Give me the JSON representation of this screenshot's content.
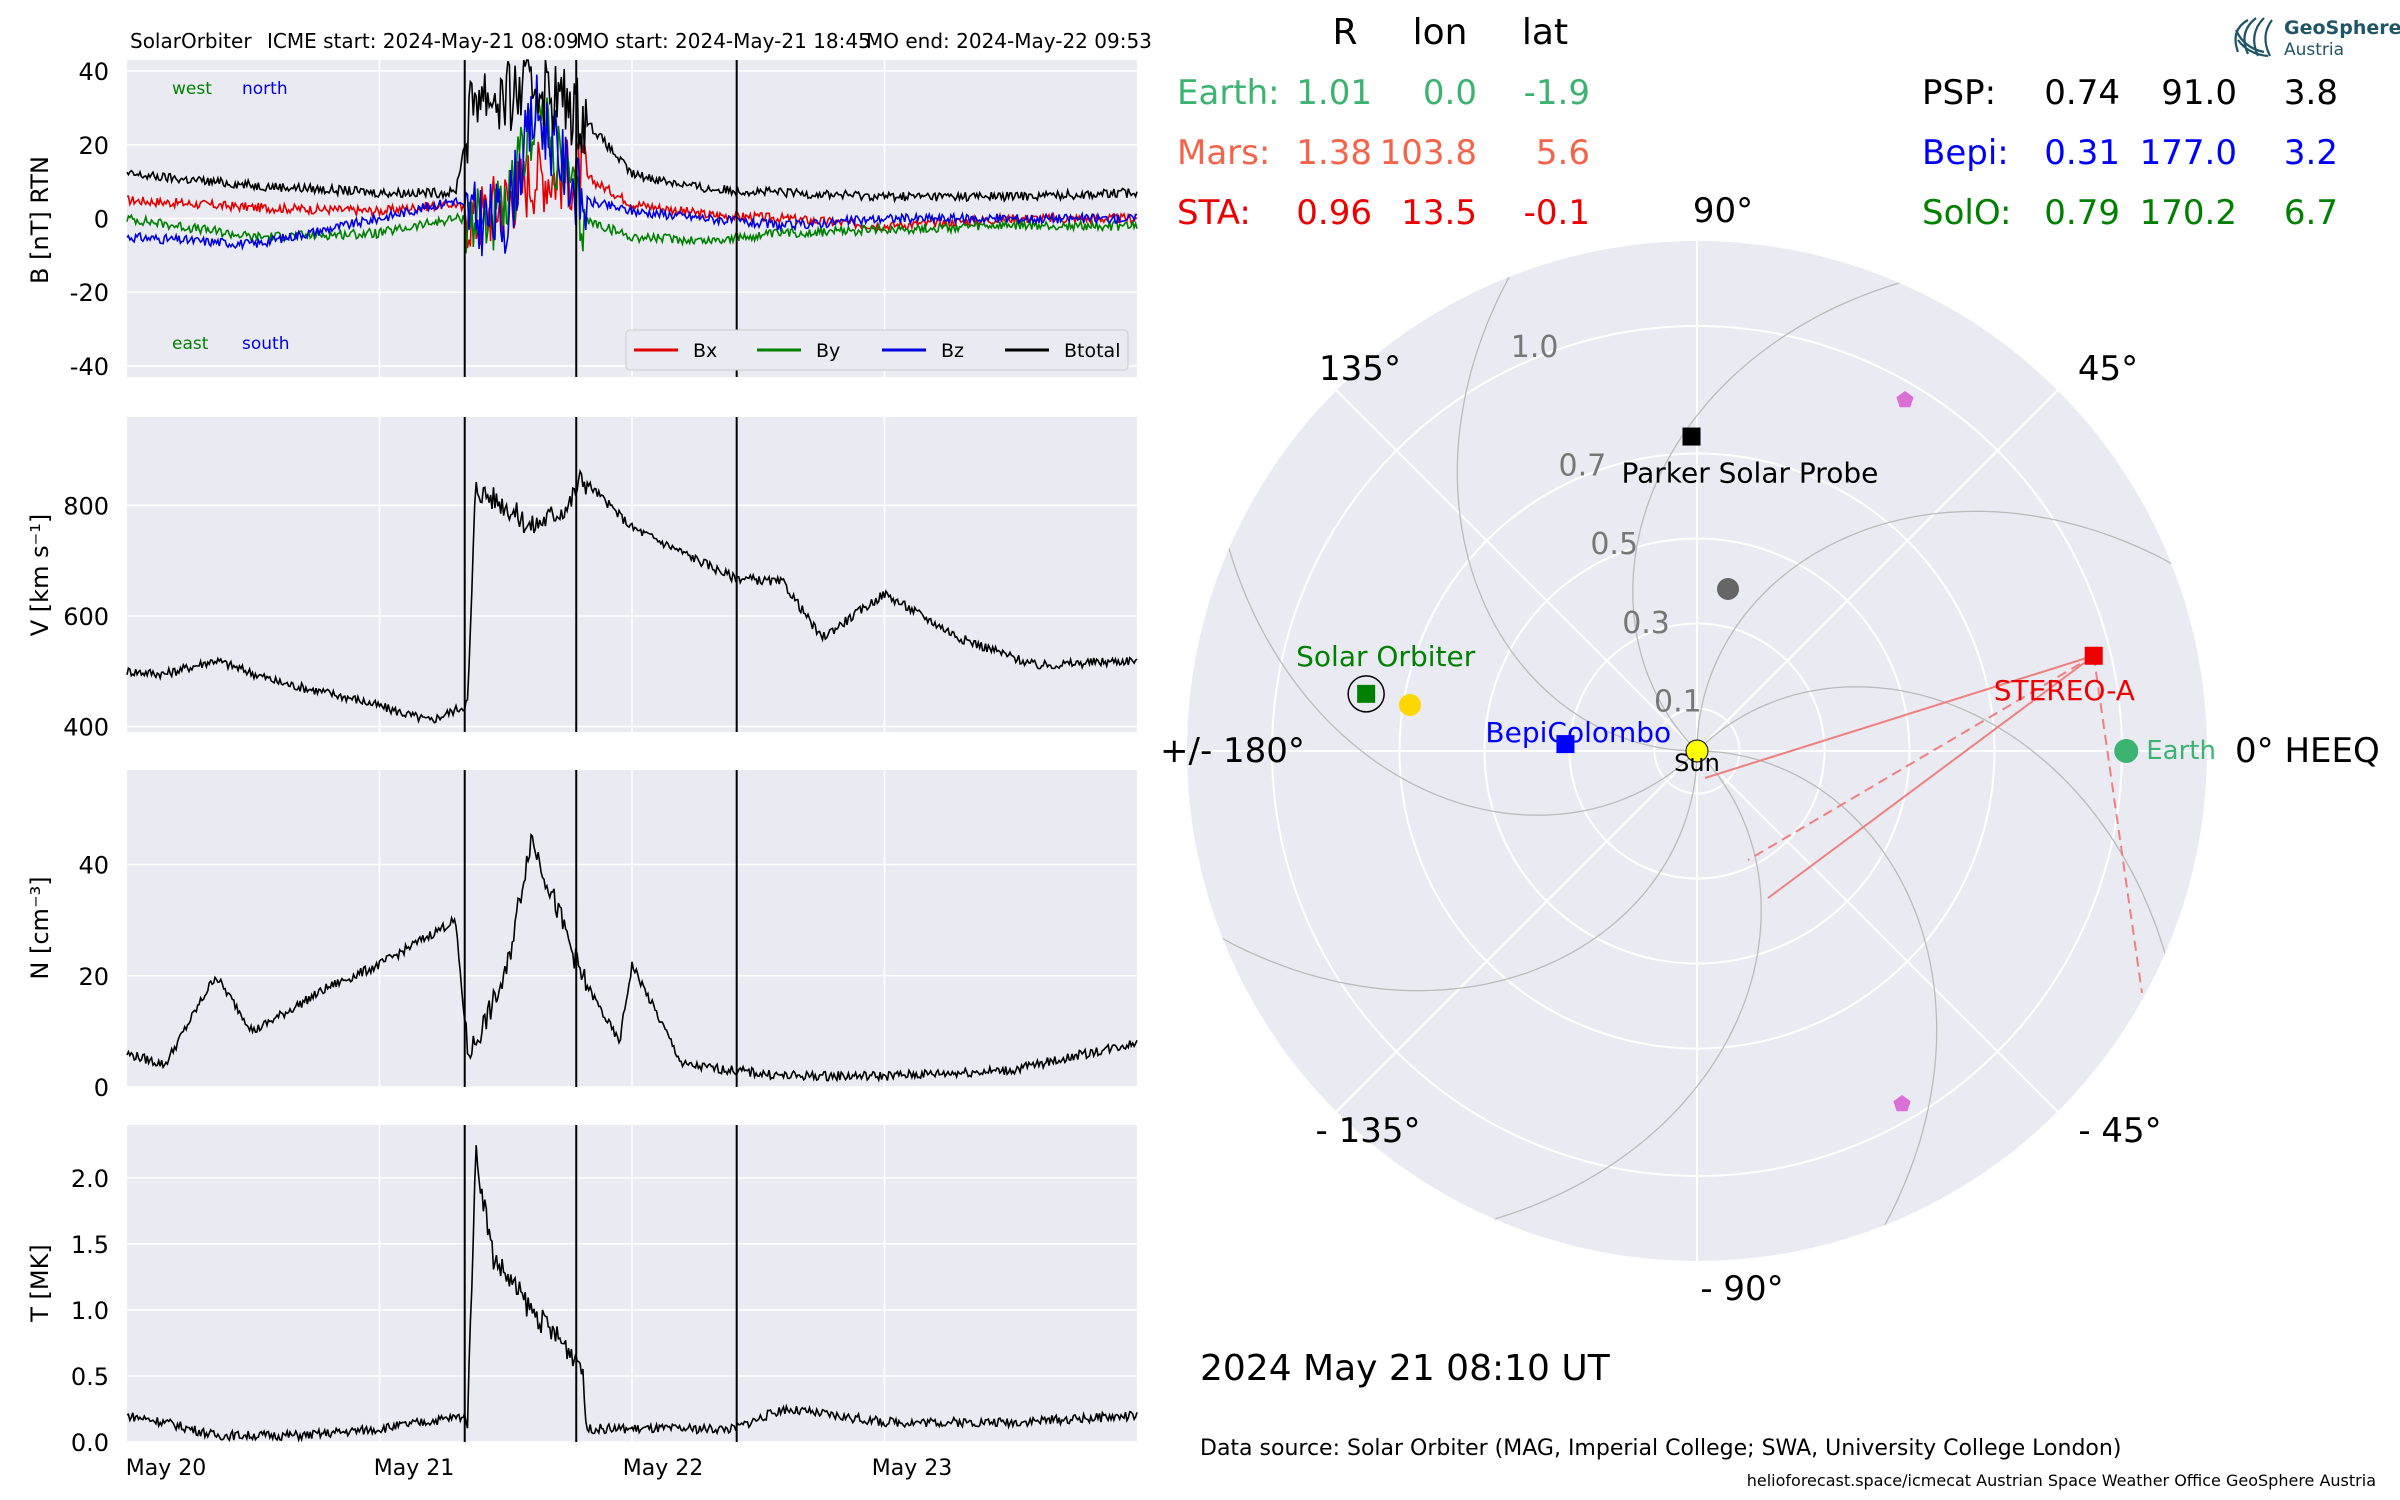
{
  "header": {
    "spacecraft": "SolarOrbiter",
    "icme_start": "ICME start: 2024-May-21 08:09",
    "mo_start": "MO start: 2024-May-21 18:45",
    "mo_end": "MO end: 2024-May-22 09:53"
  },
  "colors": {
    "panel_bg": "#EAEAF2",
    "grid": "#ffffff",
    "bx": "#e00000",
    "by": "#008000",
    "bz": "#0000e0",
    "btotal": "#000000",
    "earth": "#3cb371",
    "mars": "#f4644a",
    "sta": "#ee0000",
    "psp": "#000000",
    "bepi": "#0000ff",
    "solo": "#008000",
    "sun": "#ffff00",
    "pentagon": "#da70d6",
    "grey_dot": "#666666",
    "sta_lines": "#f08080"
  },
  "chart_data": [
    {
      "type": "line",
      "panel": "magnetic_field",
      "ylabel": "B [nT] RTN",
      "ylim": [
        -43,
        43
      ],
      "yticks": [
        -40,
        -20,
        0,
        20,
        40
      ],
      "grid": true,
      "legend_position": "lower-right",
      "corner_labels": {
        "west": "west",
        "north": "north",
        "east": "east",
        "south": "south"
      },
      "series": [
        {
          "name": "Bx",
          "color": "#e00000",
          "x": [
            0,
            0.5,
            1.0,
            1.3,
            1.38,
            1.5,
            1.62,
            1.8,
            2.0,
            2.3,
            2.6,
            3.0,
            3.5,
            4.0
          ],
          "y": [
            5,
            3,
            2,
            4,
            0,
            5,
            12,
            12,
            4,
            1,
            0,
            -2,
            0,
            0
          ]
        },
        {
          "name": "By",
          "color": "#008000",
          "x": [
            0,
            0.5,
            1.0,
            1.3,
            1.38,
            1.5,
            1.62,
            1.8,
            2.0,
            2.3,
            2.6,
            3.0,
            3.5,
            4.0
          ],
          "y": [
            0,
            -5,
            -4,
            0,
            0,
            0,
            30,
            0,
            -5,
            -6,
            -4,
            -3,
            -2,
            -2
          ]
        },
        {
          "name": "Bz",
          "color": "#0000e0",
          "x": [
            0,
            0.5,
            1.0,
            1.3,
            1.38,
            1.5,
            1.62,
            1.8,
            2.0,
            2.3,
            2.6,
            3.0,
            3.5,
            4.0
          ],
          "y": [
            -5,
            -7,
            0,
            5,
            0,
            0,
            30,
            5,
            2,
            0,
            -2,
            0,
            0,
            0
          ]
        },
        {
          "name": "Btotal",
          "color": "#000000",
          "x": [
            0,
            0.5,
            1.0,
            1.3,
            1.38,
            1.5,
            1.62,
            1.8,
            2.0,
            2.3,
            2.6,
            3.0,
            3.5,
            4.0
          ],
          "y": [
            12,
            9,
            7,
            7,
            35,
            32,
            37,
            28,
            12,
            8,
            7,
            6,
            6,
            7
          ]
        }
      ]
    },
    {
      "type": "line",
      "panel": "velocity",
      "ylabel": "V [km s⁻¹]",
      "ylim": [
        390,
        960
      ],
      "yticks": [
        400,
        600,
        800
      ],
      "grid": true,
      "series": [
        {
          "name": "",
          "color": "#000000",
          "x": [
            0,
            0.15,
            0.35,
            0.6,
            0.9,
            1.2,
            1.35,
            1.38,
            1.5,
            1.6,
            1.75,
            1.8,
            2.0,
            2.4,
            2.6,
            2.75,
            3.0,
            3.3,
            3.6,
            4.0
          ],
          "y": [
            500,
            495,
            520,
            480,
            450,
            410,
            440,
            830,
            800,
            760,
            800,
            850,
            760,
            670,
            660,
            560,
            640,
            560,
            510,
            520
          ]
        }
      ]
    },
    {
      "type": "line",
      "panel": "density",
      "ylabel": "N [cm⁻³]",
      "ylim": [
        0,
        57
      ],
      "yticks": [
        0,
        20,
        40
      ],
      "grid": true,
      "series": [
        {
          "name": "",
          "color": "#000000",
          "x": [
            0,
            0.15,
            0.35,
            0.5,
            0.8,
            1.0,
            1.3,
            1.35,
            1.38,
            1.5,
            1.6,
            1.8,
            1.95,
            2.0,
            2.2,
            2.6,
            3.0,
            3.5,
            4.0
          ],
          "y": [
            6,
            4,
            20,
            10,
            18,
            22,
            30,
            6,
            8,
            20,
            45,
            20,
            8,
            22,
            4,
            2,
            2,
            3,
            8
          ]
        }
      ]
    },
    {
      "type": "line",
      "panel": "temperature",
      "ylabel": "T [MK]",
      "ylim": [
        0,
        2.4
      ],
      "yticks": [
        0.0,
        0.5,
        1.0,
        1.5,
        2.0
      ],
      "grid": true,
      "x_tick_labels": [
        "May 20",
        "May 21",
        "May 22",
        "May 23"
      ],
      "series": [
        {
          "name": "",
          "color": "#000000",
          "x": [
            0,
            0.15,
            0.35,
            0.7,
            1.0,
            1.35,
            1.38,
            1.45,
            1.6,
            1.8,
            1.82,
            2.0,
            2.4,
            2.6,
            3.0,
            3.5,
            4.0
          ],
          "y": [
            0.2,
            0.15,
            0.05,
            0.05,
            0.1,
            0.2,
            2.2,
            1.4,
            1.0,
            0.6,
            0.1,
            0.1,
            0.1,
            0.25,
            0.15,
            0.15,
            0.2
          ]
        }
      ]
    },
    {
      "type": "scatter",
      "panel": "polar_positions",
      "angle_labels": [
        "90°",
        "45°",
        "0° HEEQ",
        "- 45°",
        "- 90°",
        "- 135°",
        "+/- 180°",
        "135°"
      ],
      "radius_labels": [
        "0.1",
        "0.3",
        "0.5",
        "0.7",
        "1.0"
      ],
      "points": [
        {
          "name": "Earth",
          "r": 1.01,
          "lon": 0.0,
          "color": "#3cb371",
          "marker": "circle"
        },
        {
          "name": "STEREO-A",
          "r": 0.96,
          "lon": 13.5,
          "color": "#ee0000",
          "marker": "square"
        },
        {
          "name": "Parker Solar Probe",
          "r": 0.74,
          "lon": 91.0,
          "color": "#000000",
          "marker": "square"
        },
        {
          "name": "BepiColombo",
          "r": 0.31,
          "lon": 177.0,
          "color": "#0000ff",
          "marker": "square"
        },
        {
          "name": "Solar Orbiter",
          "r": 0.79,
          "lon": 170.2,
          "color": "#008000",
          "marker": "square"
        },
        {
          "name": "Sun",
          "r": 0,
          "lon": 0,
          "color": "#ffff00",
          "marker": "circle"
        }
      ]
    }
  ],
  "table": {
    "headers": [
      "R",
      "lon",
      "lat"
    ],
    "rows_left": [
      {
        "label": "Earth:",
        "r": "1.01",
        "lon": "0.0",
        "lat": "-1.9",
        "color": "#3cb371"
      },
      {
        "label": "Mars:",
        "r": "1.38",
        "lon": "103.8",
        "lat": "5.6",
        "color": "#f4644a"
      },
      {
        "label": "STA:",
        "r": "0.96",
        "lon": "13.5",
        "lat": "-0.1",
        "color": "#ee0000"
      }
    ],
    "rows_right": [
      {
        "label": "PSP:",
        "r": "0.74",
        "lon": "91.0",
        "lat": "3.8",
        "color": "#000000"
      },
      {
        "label": "Bepi:",
        "r": "0.31",
        "lon": "177.0",
        "lat": "3.2",
        "color": "#0000ff"
      },
      {
        "label": "SolO:",
        "r": "0.79",
        "lon": "170.2",
        "lat": "6.7",
        "color": "#008000"
      }
    ]
  },
  "logo": {
    "line1": "GeoSphere",
    "line2": "Austria"
  },
  "timestamp": "2024 May 21  08:10 UT",
  "data_source": "Data source: Solar Orbiter (MAG, Imperial College; SWA, University College London)",
  "footer": "helioforecast.space/icmecat   Austrian Space Weather Office   GeoSphere Austria"
}
